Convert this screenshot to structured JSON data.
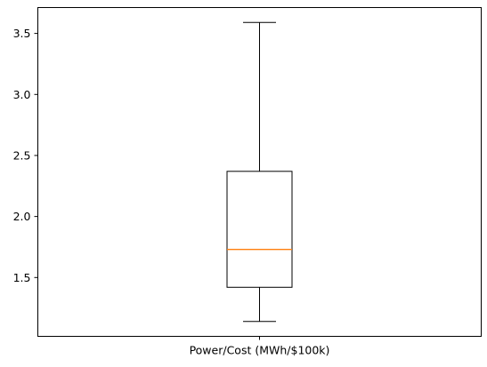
{
  "chart_data": {
    "type": "boxplot",
    "title": "",
    "xlabel": "",
    "ylabel": "",
    "categories": [
      "Power/Cost (MWh/$100k)"
    ],
    "boxes": [
      {
        "category": "Power/Cost (MWh/$100k)",
        "whisker_low": 1.14,
        "q1": 1.42,
        "median": 1.73,
        "q3": 2.37,
        "whisker_high": 3.59
      }
    ],
    "ylim": [
      1.018,
      3.712
    ],
    "yticks": [
      1.5,
      2.0,
      2.5,
      3.0,
      3.5
    ],
    "ytick_labels": [
      "1.5",
      "2.0",
      "2.5",
      "3.0",
      "3.5"
    ],
    "grid": false,
    "colors": {
      "box": "#000000",
      "whisker": "#000000",
      "median": "#ff7f0e",
      "axes": "#000000"
    }
  }
}
